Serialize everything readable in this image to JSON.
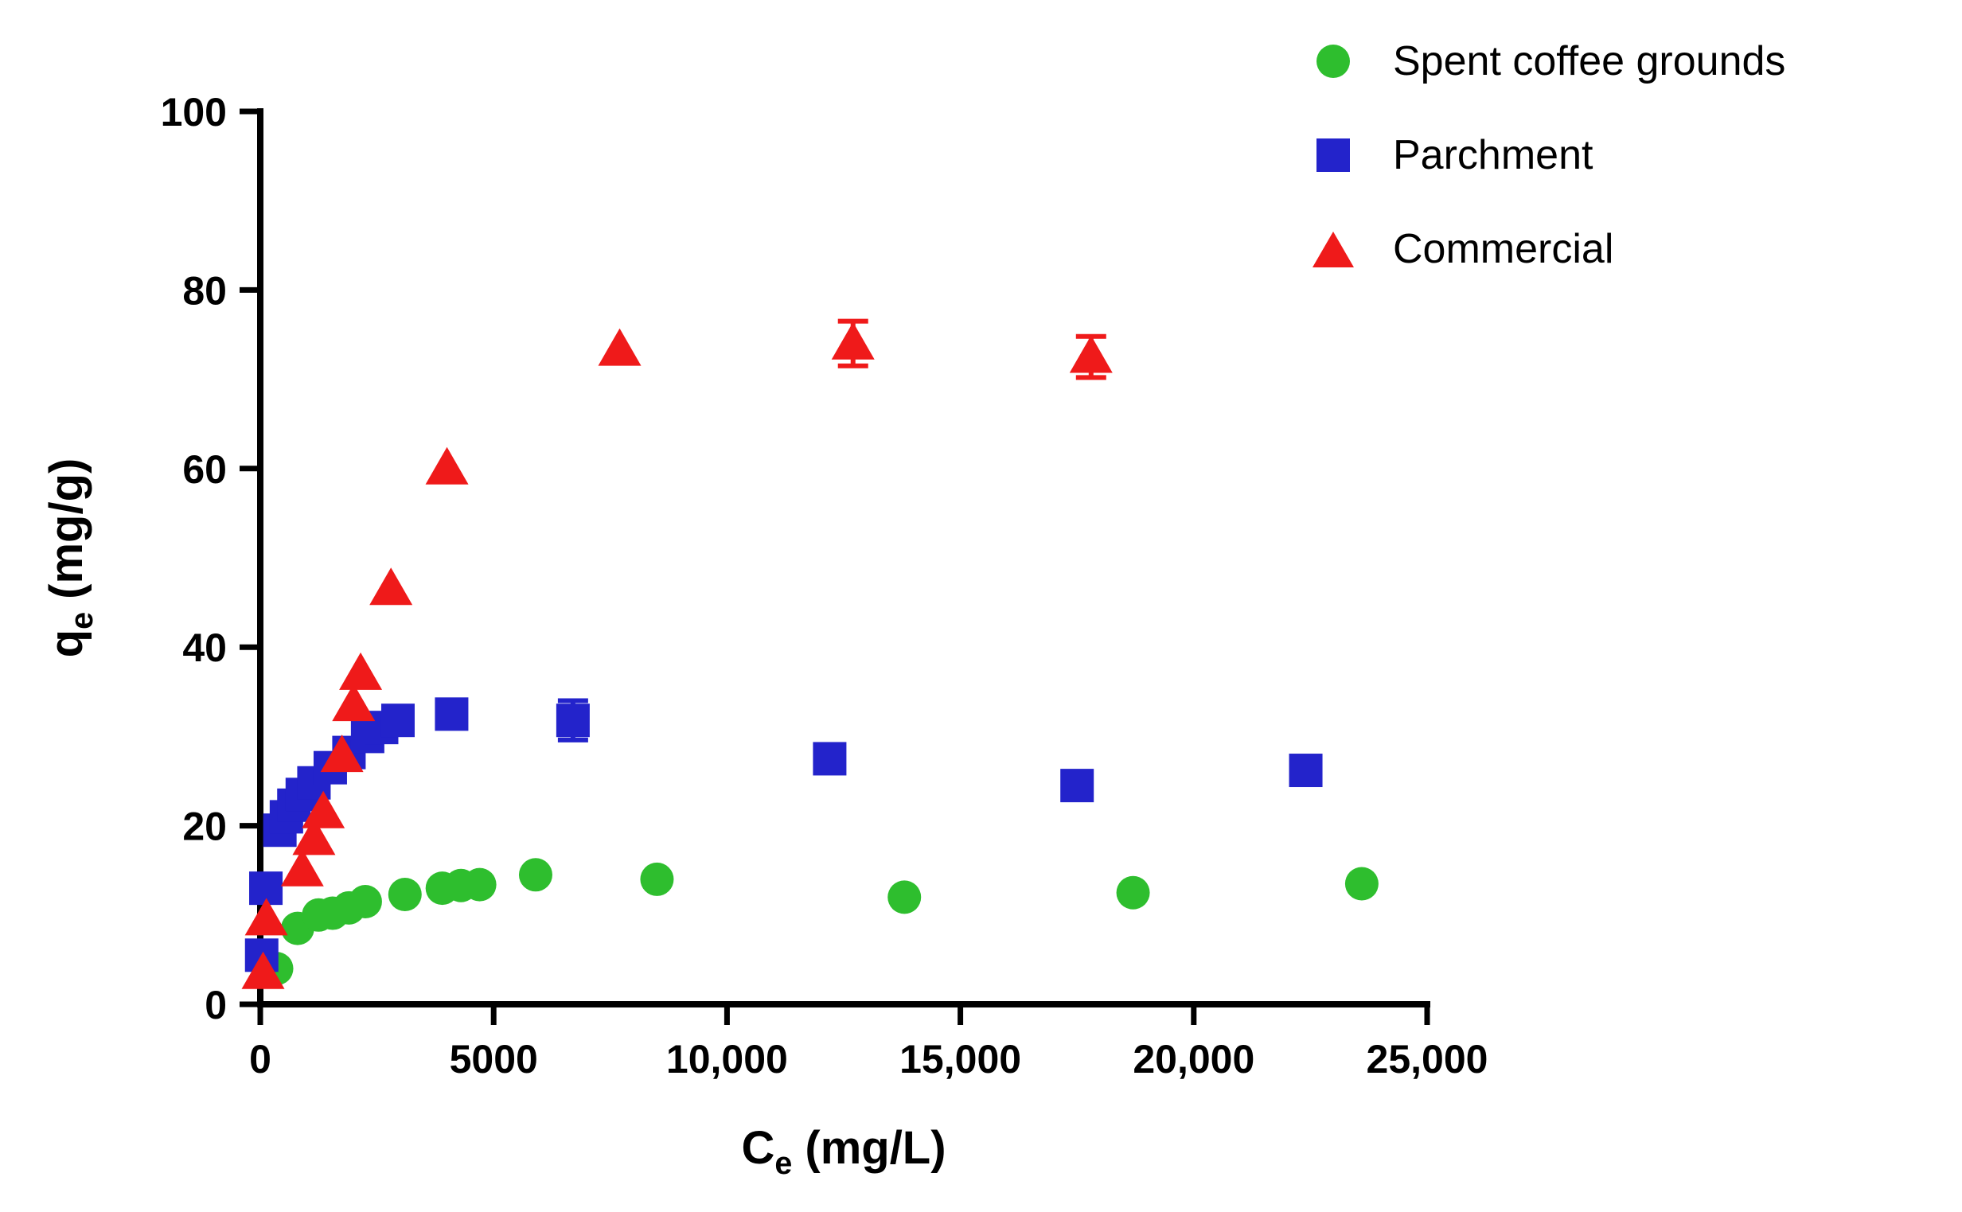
{
  "figure": {
    "background": "#ffffff",
    "axis_color": "#000000",
    "text_color": "#000000"
  },
  "labels": {
    "x": {
      "base": "C",
      "sub": "e",
      "rest": " (mg/L)"
    },
    "y": {
      "base": "q",
      "sub": "e",
      "rest": " (mg/g)"
    }
  },
  "chart_data": {
    "type": "scatter",
    "title": "",
    "xlabel": "Ce (mg/L)",
    "ylabel": "qe (mg/g)",
    "xlim": [
      0,
      25000
    ],
    "ylim": [
      0,
      100
    ],
    "grid": false,
    "legend_position": "top-right",
    "x_ticks": [
      {
        "value": 0,
        "label": "0"
      },
      {
        "value": 5000,
        "label": "5000"
      },
      {
        "value": 10000,
        "label": "10,000"
      },
      {
        "value": 15000,
        "label": "15,000"
      },
      {
        "value": 20000,
        "label": "20,000"
      },
      {
        "value": 25000,
        "label": "25,000"
      }
    ],
    "y_ticks": [
      {
        "value": 0,
        "label": "0"
      },
      {
        "value": 20,
        "label": "20"
      },
      {
        "value": 40,
        "label": "40"
      },
      {
        "value": 60,
        "label": "60"
      },
      {
        "value": 80,
        "label": "80"
      },
      {
        "value": 100,
        "label": "100"
      }
    ],
    "series": [
      {
        "name": "Spent coffee grounds",
        "marker": "circle",
        "color": "#2EBE2E",
        "points": [
          [
            350,
            4
          ],
          [
            800,
            8.5
          ],
          [
            1250,
            10
          ],
          [
            1550,
            10.2
          ],
          [
            1900,
            10.8
          ],
          [
            2250,
            11.5
          ],
          [
            3100,
            12.3
          ],
          [
            3900,
            13
          ],
          [
            4300,
            13.3
          ],
          [
            4700,
            13.4
          ],
          [
            5900,
            14.5
          ],
          [
            8500,
            14
          ],
          [
            13800,
            12
          ],
          [
            18700,
            12.5
          ],
          [
            23600,
            13.5
          ]
        ]
      },
      {
        "name": "Parchment",
        "marker": "square",
        "color": "#2323CB",
        "points": [
          [
            30,
            5.5
          ],
          [
            120,
            13
          ],
          [
            420,
            19.5
          ],
          [
            560,
            21
          ],
          [
            720,
            22.3
          ],
          [
            900,
            23.5
          ],
          [
            1150,
            24.8
          ],
          [
            1500,
            26.5
          ],
          [
            1900,
            28.2
          ],
          [
            2300,
            30
          ],
          [
            2600,
            31
          ],
          [
            2950,
            31.8
          ],
          [
            4100,
            32.5
          ],
          [
            6700,
            31.8,
            2.2
          ],
          [
            12200,
            27.5
          ],
          [
            17500,
            24.5
          ],
          [
            22400,
            26.2
          ]
        ]
      },
      {
        "name": "Commercial",
        "marker": "triangle",
        "color": "#EF1A1A",
        "points": [
          [
            60,
            3.5
          ],
          [
            130,
            9.5
          ],
          [
            900,
            15
          ],
          [
            1150,
            18.5
          ],
          [
            1350,
            21.5
          ],
          [
            1750,
            27.8
          ],
          [
            2000,
            33.5
          ],
          [
            2150,
            37
          ],
          [
            2800,
            46.5
          ],
          [
            4000,
            60
          ],
          [
            7700,
            73.3
          ],
          [
            12700,
            74,
            2.5
          ],
          [
            17800,
            72.5,
            2.3
          ]
        ]
      }
    ]
  }
}
